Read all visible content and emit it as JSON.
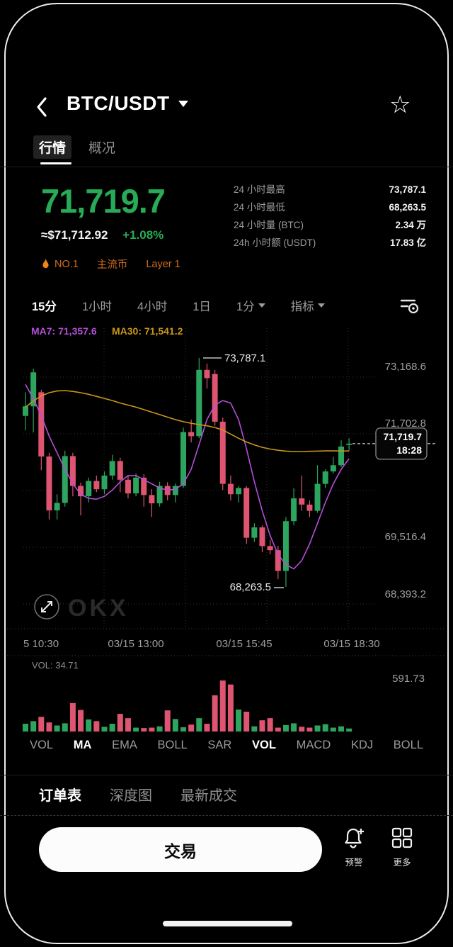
{
  "colors": {
    "green": "#2da55e",
    "red": "#dd5570",
    "price_green": "#27ab57",
    "ma7": "#b44fd8",
    "ma30": "#c9961b",
    "badge_orange": "#cf6c1c",
    "axis_gray": "#9e9ea4",
    "grid": "#30303c"
  },
  "icon_glyphs": {
    "star": "☆"
  },
  "header": {
    "title": "BTC/USDT"
  },
  "tabs": {
    "market": "行情",
    "overview": "概况"
  },
  "price": {
    "last": "71,719.7",
    "fiat": "≈$71,712.92",
    "change": "+1.08%"
  },
  "stats": [
    {
      "label": "24 小时最高",
      "value": "73,787.1"
    },
    {
      "label": "24 小时最低",
      "value": "68,263.5"
    },
    {
      "label": "24 小时量 (BTC)",
      "value": "2.34 万"
    },
    {
      "label": "24h 小时额 (USDT)",
      "value": "17.83 亿"
    }
  ],
  "badges": {
    "rank": "NO.1",
    "tag1": "主流币",
    "tag2": "Layer 1"
  },
  "timeframes": {
    "items": [
      "15分",
      "1小时",
      "4小时",
      "1日"
    ],
    "custom": "1分",
    "indicator": "指标"
  },
  "chart_data": {
    "type": "candlestick",
    "interval": "15m",
    "ma7_label": "MA7: 71,357.6",
    "ma30_label": "MA30: 71,541.2",
    "high_annotation": "73,787.1",
    "low_annotation": "68,263.5",
    "last_price": "71,719.7",
    "last_time": "18:28",
    "ylim": [
      68100,
      74100
    ],
    "y_axis_labels": [
      "73,168.6",
      "71,702.8",
      "69,516.4",
      "68,393.2"
    ],
    "x_axis_labels": [
      "5 10:30",
      "03/15 13:00",
      "03/15 15:45",
      "03/15 18:30"
    ],
    "candles": [
      [
        72390,
        72960,
        72040,
        72620
      ],
      [
        72620,
        73530,
        71990,
        73440
      ],
      [
        72960,
        73020,
        71080,
        71410
      ],
      [
        71410,
        71500,
        69890,
        70110
      ],
      [
        70110,
        70500,
        69890,
        70290
      ],
      [
        70290,
        71550,
        70200,
        71420
      ],
      [
        71420,
        71500,
        70450,
        70700
      ],
      [
        70700,
        70780,
        69990,
        70450
      ],
      [
        70450,
        70900,
        70300,
        70820
      ],
      [
        70820,
        70950,
        70550,
        70620
      ],
      [
        70620,
        71050,
        70500,
        70950
      ],
      [
        70950,
        71450,
        70850,
        71300
      ],
      [
        71300,
        71380,
        70550,
        70850
      ],
      [
        70850,
        70950,
        70400,
        70520
      ],
      [
        70520,
        71000,
        70450,
        70900
      ],
      [
        70900,
        70980,
        70200,
        70480
      ],
      [
        70480,
        70620,
        69950,
        70280
      ],
      [
        70280,
        70800,
        70200,
        70700
      ],
      [
        70700,
        70790,
        70350,
        70480
      ],
      [
        70480,
        70760,
        70300,
        70700
      ],
      [
        70700,
        72110,
        70650,
        72000
      ],
      [
        72000,
        72300,
        71750,
        71900
      ],
      [
        71900,
        73787.1,
        71850,
        73500
      ],
      [
        73500,
        73650,
        73050,
        73300
      ],
      [
        73400,
        73500,
        72150,
        72250
      ],
      [
        72250,
        72350,
        70600,
        70750
      ],
      [
        70750,
        70950,
        70350,
        70500
      ],
      [
        70500,
        70700,
        70300,
        70650
      ],
      [
        70650,
        70700,
        69300,
        69450
      ],
      [
        69450,
        69800,
        69350,
        69700
      ],
      [
        69700,
        69750,
        69100,
        69250
      ],
      [
        69250,
        69400,
        69050,
        69150
      ],
      [
        69150,
        69250,
        68450,
        68650
      ],
      [
        68650,
        69950,
        68263.5,
        69850
      ],
      [
        69850,
        70650,
        69750,
        70400
      ],
      [
        70400,
        70950,
        70100,
        70250
      ],
      [
        70250,
        70350,
        69950,
        70100
      ],
      [
        70100,
        71200,
        70050,
        70750
      ],
      [
        70750,
        71100,
        70650,
        71050
      ],
      [
        71050,
        71400,
        71000,
        71200
      ],
      [
        71200,
        71800,
        71150,
        71650
      ],
      [
        71700,
        71850,
        71550,
        71719.7
      ]
    ],
    "ma7": [
      73150,
      72800,
      72400,
      71900,
      71500,
      71100,
      70750,
      70500,
      70400,
      70380,
      70450,
      70600,
      70800,
      70950,
      70950,
      70850,
      70750,
      70650,
      70600,
      70620,
      70750,
      71100,
      71700,
      72300,
      72650,
      72760,
      72700,
      72300,
      71600,
      70800,
      70100,
      69500,
      69050,
      68800,
      68700,
      68900,
      69300,
      69800,
      70300,
      70750,
      71100,
      71357.6
    ],
    "ma30": [
      72600,
      72750,
      72870,
      72950,
      72990,
      73000,
      72980,
      72950,
      72910,
      72860,
      72810,
      72760,
      72700,
      72650,
      72600,
      72540,
      72480,
      72420,
      72360,
      72300,
      72250,
      72210,
      72180,
      72150,
      72110,
      72050,
      71950,
      71850,
      71760,
      71690,
      71630,
      71590,
      71560,
      71540,
      71530,
      71530,
      71535,
      71540,
      71545,
      71545,
      71543,
      71541.2
    ],
    "volumes": [
      90,
      120,
      170,
      105,
      70,
      95,
      330,
      250,
      140,
      120,
      55,
      90,
      205,
      155,
      45,
      40,
      45,
      60,
      245,
      145,
      50,
      80,
      155,
      90,
      420,
      591.73,
      545,
      255,
      230,
      60,
      130,
      155,
      45,
      75,
      95,
      55,
      45,
      70,
      85,
      45,
      60,
      35
    ],
    "vol_label": "VOL: 34.71",
    "vol_axis_label": "591.73"
  },
  "indicators": {
    "items": [
      "VOL",
      "MA",
      "EMA",
      "BOLL",
      "SAR",
      "VOL",
      "MACD",
      "KDJ",
      "BOLL"
    ]
  },
  "order_tabs": [
    "订单表",
    "深度图",
    "最新成交"
  ],
  "actions": {
    "trade": "交易",
    "alert": "预警",
    "more": "更多"
  }
}
